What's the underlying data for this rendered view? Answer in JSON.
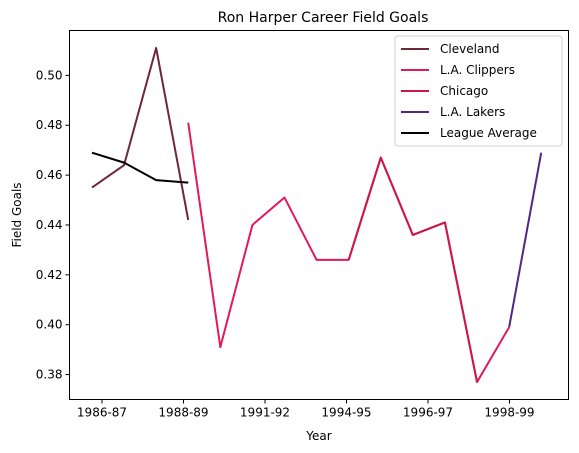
{
  "chart_data": {
    "type": "line",
    "title": "Ron Harper Career Field Goals",
    "xlabel": "Year",
    "ylabel": "Field Goals",
    "x_tick_labels": [
      "1986-87",
      "1988-89",
      "1991-92",
      "1994-95",
      "1996-97",
      "1998-99"
    ],
    "y_ticks": [
      "0.38",
      "0.40",
      "0.42",
      "0.44",
      "0.46",
      "0.48",
      "0.50"
    ],
    "ylim": [
      0.37,
      0.518
    ],
    "legend_placement": "top-right",
    "grid": false,
    "series": [
      {
        "name": "Cleveland",
        "color": "#6e2639",
        "x": [
          0,
          1,
          2,
          3
        ],
        "y": [
          0.455,
          0.464,
          0.511,
          0.442
        ]
      },
      {
        "name": "L.A. Clippers",
        "color": "#e2195a",
        "x": [
          3,
          4,
          5,
          6,
          7,
          8,
          9,
          10,
          11,
          12,
          13
        ],
        "y": [
          0.481,
          0.391,
          0.44,
          0.451,
          0.426,
          0.426,
          0.467,
          0.436,
          0.441,
          0.377,
          0.399
        ]
      },
      {
        "name": "Chicago",
        "color": "#cc1847",
        "x": [
          8,
          9,
          10,
          11,
          12
        ],
        "y": [
          0.426,
          0.467,
          0.436,
          0.441,
          0.377
        ]
      },
      {
        "name": "L.A. Lakers",
        "color": "#552583",
        "x": [
          13,
          14
        ],
        "y": [
          0.399,
          0.469
        ]
      },
      {
        "name": "League Average",
        "color": "#000000",
        "x": [
          0,
          1,
          2,
          3
        ],
        "y": [
          0.469,
          0.465,
          0.458,
          0.457
        ]
      }
    ]
  }
}
